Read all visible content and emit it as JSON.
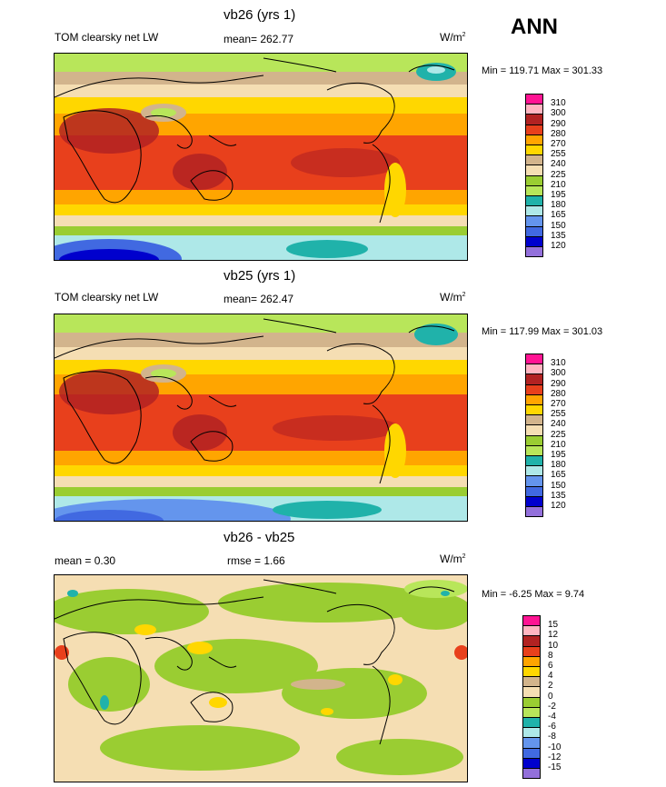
{
  "header": {
    "season": "ANN"
  },
  "panels": [
    {
      "id": "p1",
      "title": "vb26 (yrs 1)",
      "left_label": "TOM clearsky net LW",
      "center_label": "mean= 262.77",
      "units": "W/m",
      "units_exp": "2",
      "minmax": "Min = 119.71 Max = 301.33",
      "levels": [
        "310",
        "300",
        "290",
        "280",
        "270",
        "255",
        "240",
        "225",
        "210",
        "195",
        "180",
        "165",
        "150",
        "135",
        "120"
      ],
      "colors": [
        "#ff1493",
        "#ffb6c1",
        "#b22222",
        "#e8401c",
        "#ffa500",
        "#ffd700",
        "#d2b48c",
        "#f5deb3",
        "#9acd32",
        "#b8e65a",
        "#20b2aa",
        "#aee8e8",
        "#6495ed",
        "#4169e1",
        "#0000cd",
        "#9370db"
      ]
    },
    {
      "id": "p2",
      "title": "vb25 (yrs 1)",
      "left_label": "TOM clearsky net LW",
      "center_label": "mean= 262.47",
      "units": "W/m",
      "units_exp": "2",
      "minmax": "Min = 117.99 Max = 301.03",
      "levels": [
        "310",
        "300",
        "290",
        "280",
        "270",
        "255",
        "240",
        "225",
        "210",
        "195",
        "180",
        "165",
        "150",
        "135",
        "120"
      ],
      "colors": [
        "#ff1493",
        "#ffb6c1",
        "#b22222",
        "#e8401c",
        "#ffa500",
        "#ffd700",
        "#d2b48c",
        "#f5deb3",
        "#9acd32",
        "#b8e65a",
        "#20b2aa",
        "#aee8e8",
        "#6495ed",
        "#4169e1",
        "#0000cd",
        "#9370db"
      ]
    },
    {
      "id": "p3",
      "title": "vb26 - vb25",
      "left_label": "mean =   0.30",
      "center_label": "rmse =   1.66",
      "units": "W/m",
      "units_exp": "2",
      "minmax": "Min =  -6.25 Max =   9.74",
      "levels": [
        "15",
        "12",
        "10",
        "8",
        "6",
        "4",
        "2",
        "0",
        "-2",
        "-4",
        "-6",
        "-8",
        "-10",
        "-12",
        "-15"
      ],
      "colors": [
        "#ff1493",
        "#ffb6c1",
        "#b22222",
        "#e8401c",
        "#ffa500",
        "#ffd700",
        "#d2b48c",
        "#f5deb3",
        "#9acd32",
        "#b8e65a",
        "#20b2aa",
        "#aee8e8",
        "#6495ed",
        "#4169e1",
        "#0000cd",
        "#9370db"
      ]
    }
  ]
}
